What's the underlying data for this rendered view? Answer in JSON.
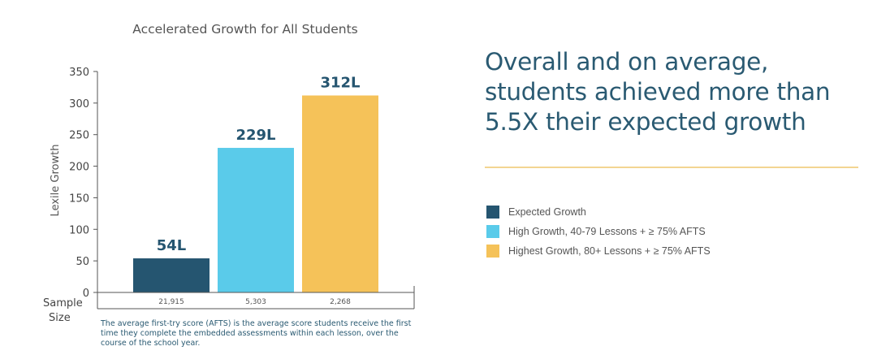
{
  "chart_data": {
    "type": "bar",
    "title": "Accelerated Growth for All Students",
    "ylabel": "Lexile Growth",
    "xlabel": "Sample Size",
    "ylim": [
      0,
      350
    ],
    "yticks": [
      0,
      50,
      100,
      150,
      200,
      250,
      300,
      350
    ],
    "categories": [
      "Expected Growth",
      "High Growth, 40-79 Lessons + ≥ 75% AFTS",
      "Highest Growth, 80+ Lessons + ≥ 75% AFTS"
    ],
    "values": [
      54,
      229,
      312
    ],
    "data_labels": [
      "54L",
      "229L",
      "312L"
    ],
    "sample_sizes": [
      "21,915",
      "5,303",
      "2,268"
    ],
    "colors": [
      "#255570",
      "#5acbea",
      "#f5c259"
    ],
    "grid": false,
    "legend_position": "right",
    "footnote": "The average first-try score (AFTS) is the average score students receive the first time they complete the embedded assessments within each lesson, over the course of the school year."
  },
  "headline": "Overall and on average, students achieved more than 5.5X their expected growth",
  "legend": [
    {
      "label": "Expected Growth",
      "color": "#255570"
    },
    {
      "label": "High Growth, 40-79 Lessons + ≥ 75% AFTS",
      "color": "#5acbea"
    },
    {
      "label": "Highest Growth, 80+ Lessons + ≥ 75% AFTS",
      "color": "#f5c259"
    }
  ]
}
